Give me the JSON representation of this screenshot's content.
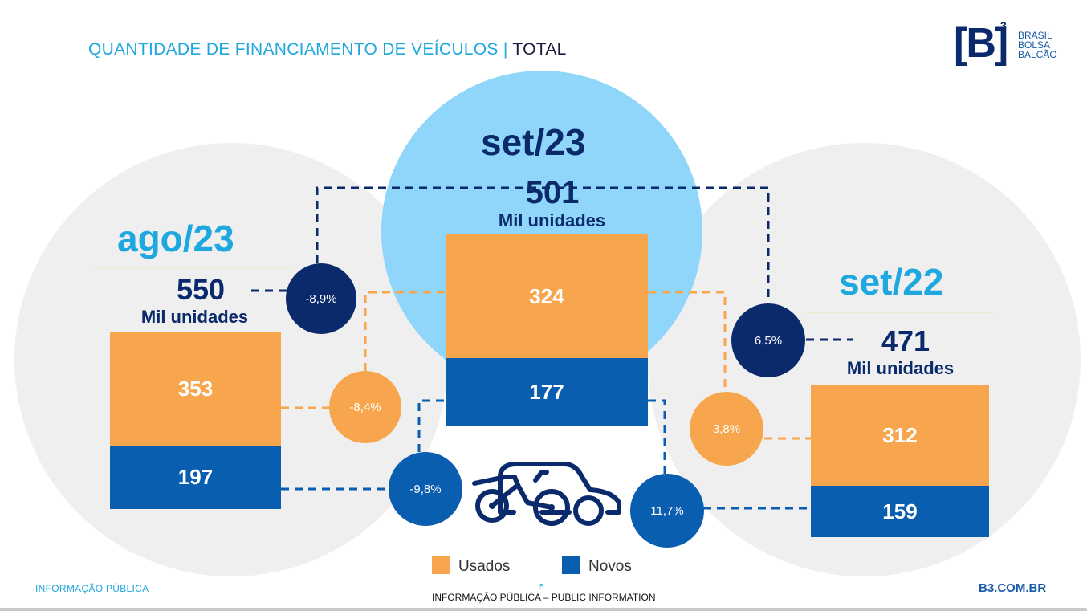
{
  "title": {
    "main": "QUANTIDADE DE FINANCIAMENTO DE VEÍCULOS |",
    "suffix": "TOTAL"
  },
  "logo": {
    "bracket": "[B]",
    "sup": "3",
    "line1": "BRASIL",
    "line2": "BOLSA",
    "line3": "BALCÃO"
  },
  "chart_data": {
    "type": "bar",
    "stacked": true,
    "categories": [
      "ago/23",
      "set/23",
      "set/22"
    ],
    "series": [
      {
        "name": "Usados",
        "values": [
          353,
          324,
          312
        ]
      },
      {
        "name": "Novos",
        "values": [
          197,
          177,
          159
        ]
      }
    ],
    "totals": [
      550,
      501,
      471
    ],
    "unit_label": "Mil unidades",
    "comparisons": {
      "vs_ago23": {
        "total": "-8,9%",
        "usados": "-8,4%",
        "novos": "-9,8%"
      },
      "vs_set22": {
        "total": "6,5%",
        "usados": "3,8%",
        "novos": "11,7%"
      }
    },
    "colors": {
      "usados": "#f7a64d",
      "novos": "#0a5eb0",
      "total_bubble": "#0b2a6b",
      "accent": "#1fa7e0"
    }
  },
  "legend": {
    "used": "Usados",
    "new": "Novos"
  },
  "footer": {
    "left": "INFORMAÇÃO PÚBLICA",
    "center": "INFORMAÇÃO PÚBLICA – PUBLIC INFORMATION",
    "page": "5",
    "right": "B3.COM.BR"
  }
}
